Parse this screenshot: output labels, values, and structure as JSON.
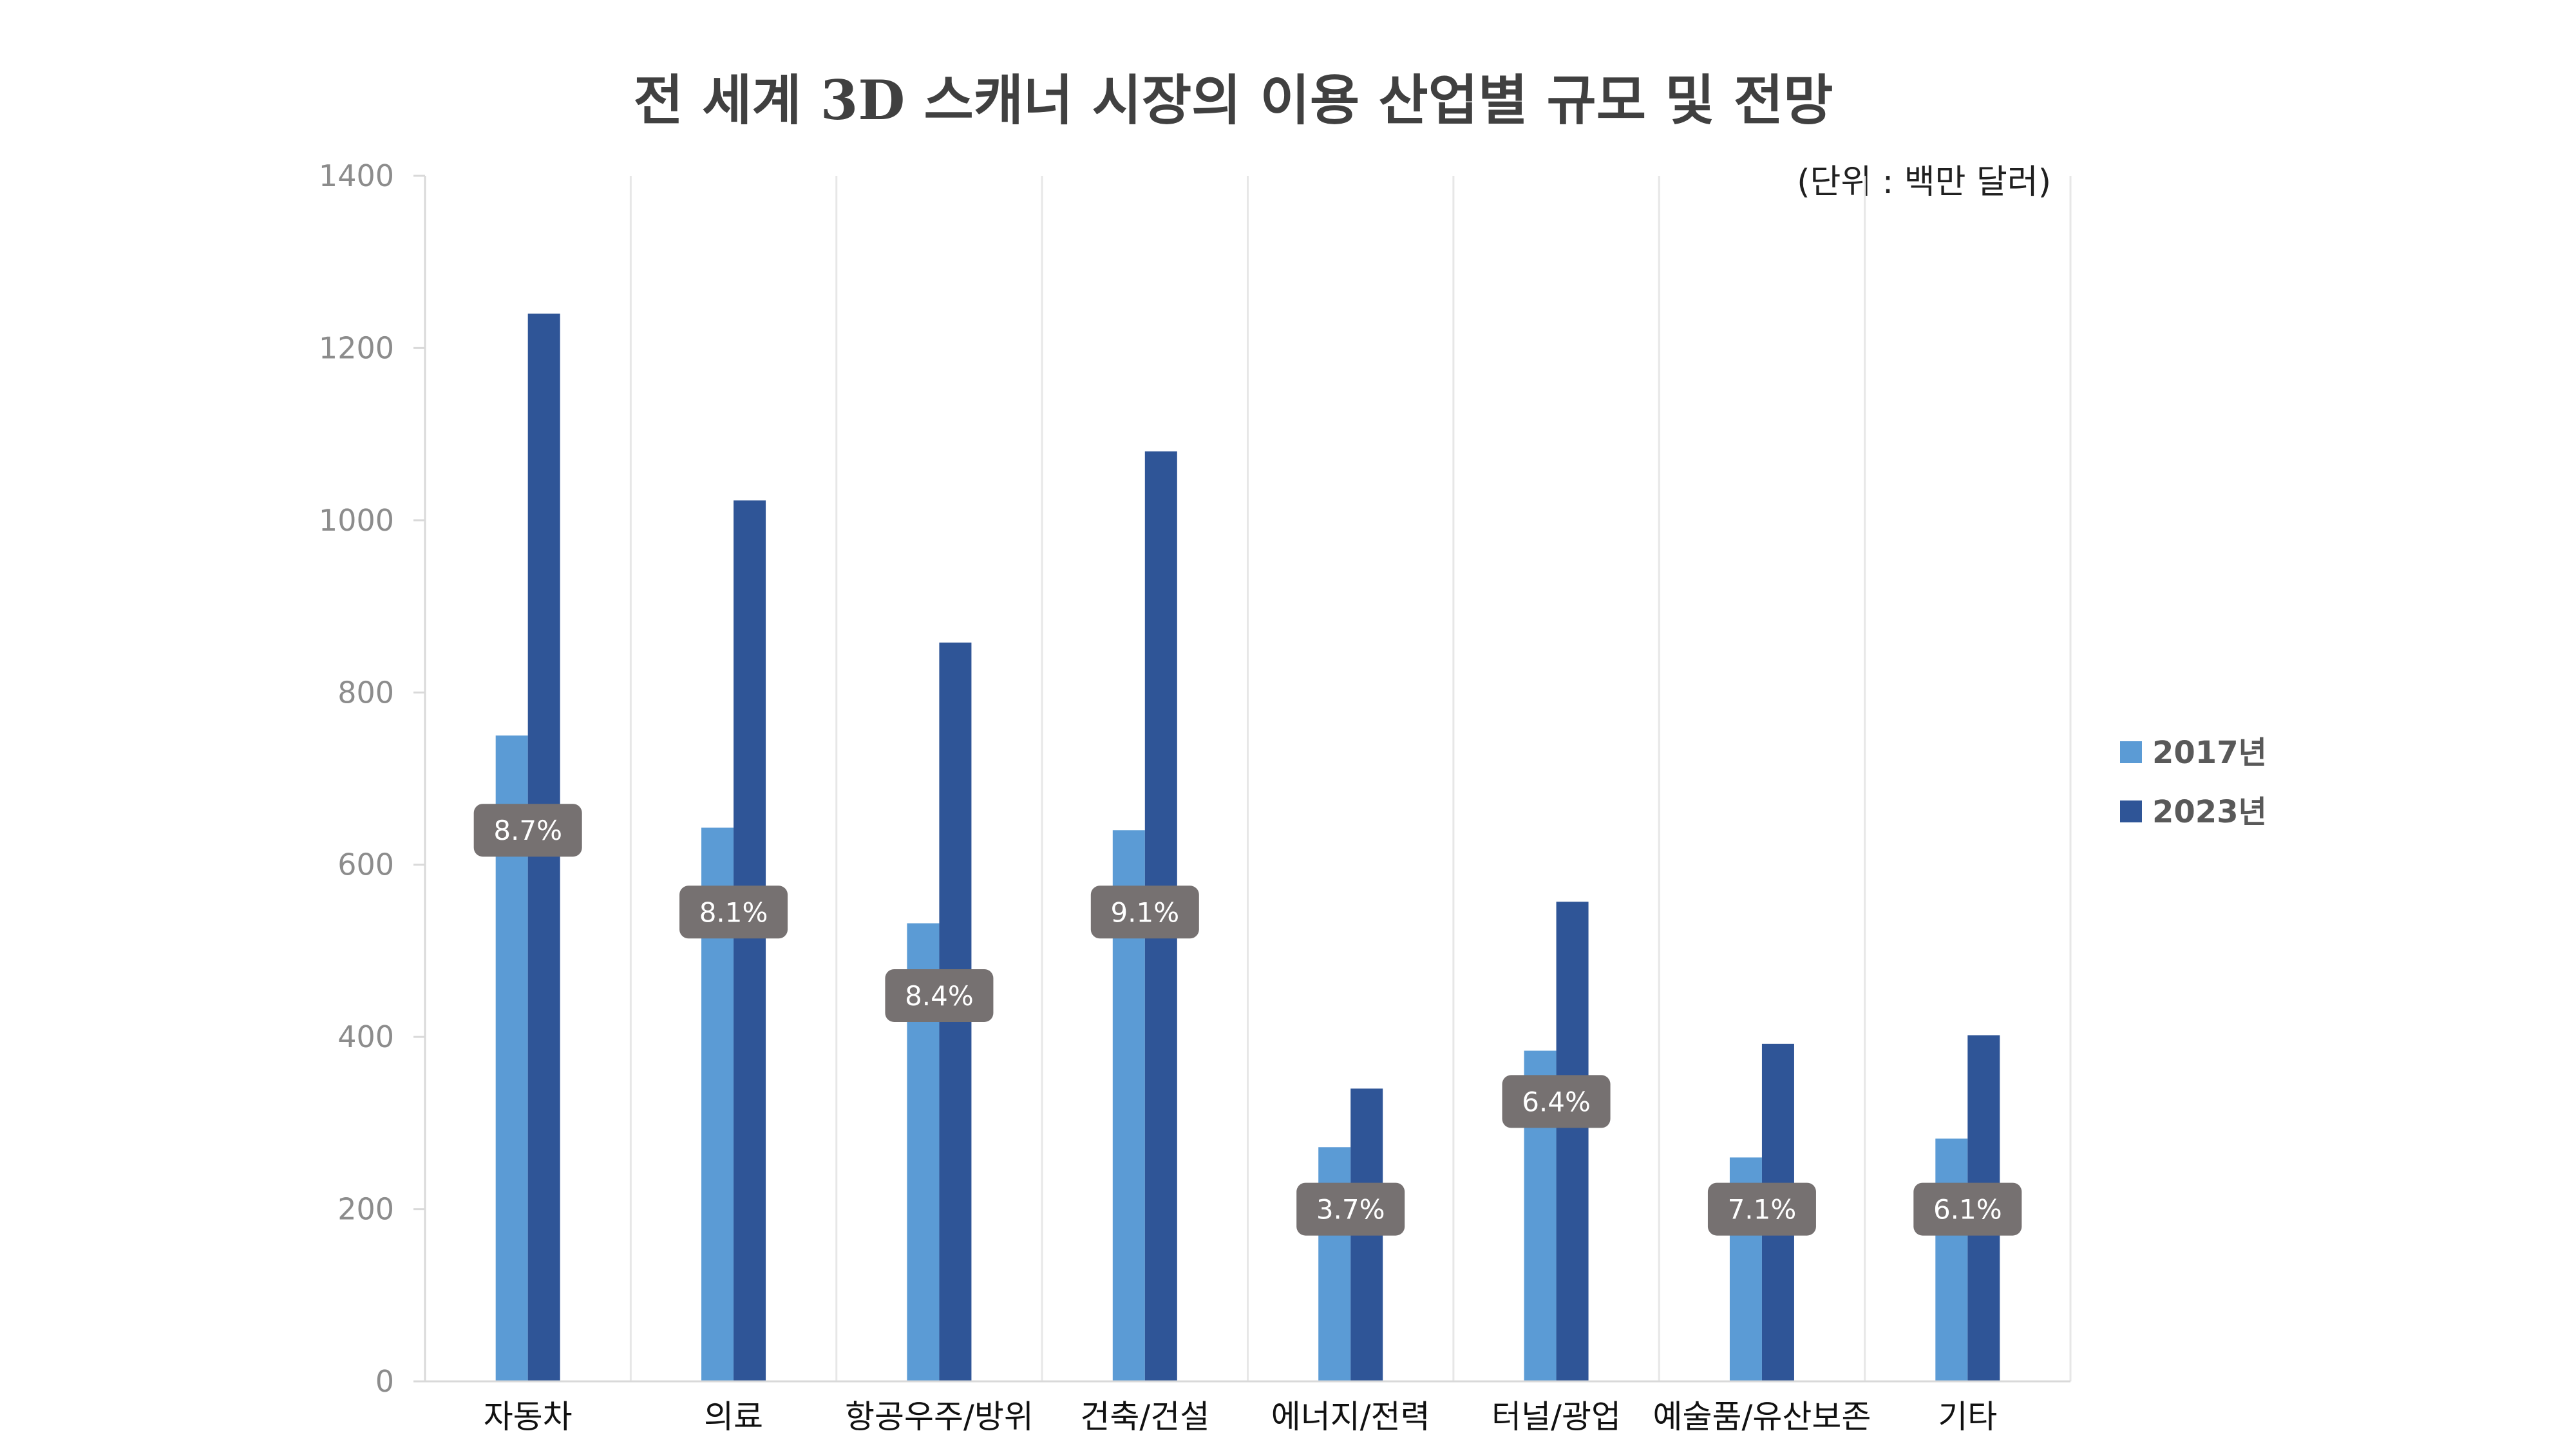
{
  "chart_data": {
    "type": "bar",
    "title": "전 세계 3D 스캐너 시장의 이용 산업별 규모 및 전망",
    "unit_note": "(단위 : 백만 달러)",
    "categories": [
      "자동차",
      "의료",
      "항공우주/방위",
      "건축/건설",
      "에너지/전력",
      "터널/광업",
      "예술품/유산보존",
      "기타"
    ],
    "series": [
      {
        "name": "2017년",
        "color": "#5b9bd5",
        "values": [
          750,
          643,
          532,
          640,
          272,
          384,
          260,
          282
        ]
      },
      {
        "name": "2023년",
        "color": "#2f5597",
        "values": [
          1240,
          1023,
          858,
          1080,
          340,
          557,
          392,
          402
        ]
      }
    ],
    "cagr_labels": [
      "8.7%",
      "8.1%",
      "8.4%",
      "9.1%",
      "3.7%",
      "6.4%",
      "7.1%",
      "6.1%"
    ],
    "cagr_label_values": [
      640,
      545,
      448,
      545,
      200,
      325,
      200,
      200
    ],
    "cagr_label_color": "#767171",
    "ylim": [
      0,
      1400
    ],
    "yticks": [
      0,
      200,
      400,
      600,
      800,
      1000,
      1200,
      1400
    ],
    "grid": "vertical category separators",
    "legend_position": "right"
  }
}
